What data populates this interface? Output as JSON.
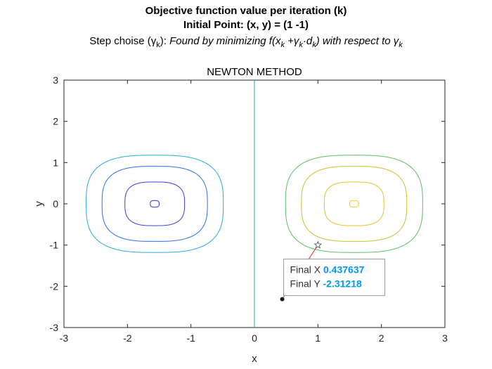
{
  "header": {
    "title_line1": "Objective function value per iteration (k)",
    "title_line2": "Initial Point: (x, y) = (1 -1)",
    "step_prefix": "Step choise (",
    "gamma": "γ",
    "sub_k": "k",
    "step_mid": "):  ",
    "found_text": "Found by minimizing f(x",
    "plus": " +",
    "dot_d": "·d",
    "wrt": ") with respect to "
  },
  "chart_data": {
    "type": "contour",
    "title": "NEWTON METHOD",
    "xlabel": "x",
    "ylabel": "y",
    "xlim": [
      -3,
      3
    ],
    "ylim": [
      -3,
      3
    ],
    "xticks": [
      -3,
      -2,
      -1,
      0,
      1,
      2,
      3
    ],
    "yticks": [
      -3,
      -2,
      -1,
      0,
      1,
      2,
      3
    ],
    "vertical_line": {
      "x": 0,
      "color": "#20a0c0"
    },
    "contours": [
      {
        "cx": -1.57,
        "cy": 0,
        "rx": 0.07,
        "ry": 0.08,
        "color": "#3a2fd6"
      },
      {
        "cx": -1.57,
        "cy": 0,
        "rx": 0.47,
        "ry": 0.53,
        "color": "#3a3ee0"
      },
      {
        "cx": -1.57,
        "cy": 0,
        "rx": 0.83,
        "ry": 0.91,
        "color": "#2a70e8"
      },
      {
        "cx": -1.57,
        "cy": 0,
        "rx": 1.08,
        "ry": 1.18,
        "color": "#2aa8e0"
      },
      {
        "cx": 1.57,
        "cy": 0,
        "rx": 0.07,
        "ry": 0.08,
        "color": "#f0d020"
      },
      {
        "cx": 1.57,
        "cy": 0,
        "rx": 0.47,
        "ry": 0.53,
        "color": "#e8c028"
      },
      {
        "cx": 1.57,
        "cy": 0,
        "rx": 0.83,
        "ry": 0.91,
        "color": "#c8c030"
      },
      {
        "cx": 1.57,
        "cy": 0,
        "rx": 1.08,
        "ry": 1.18,
        "color": "#58c060"
      }
    ],
    "path": {
      "points": [
        {
          "x": 1.0,
          "y": -1.0
        },
        {
          "x": 0.437637,
          "y": -2.31218
        }
      ],
      "color": "#e03030"
    },
    "start_marker": {
      "x": 1.0,
      "y": -1.0
    },
    "final_point": {
      "x": 0.437637,
      "y": -2.31218
    },
    "datatip": {
      "x_label": "Final X",
      "x_value": "0.437637",
      "y_label": "Final Y",
      "y_value": "-2.31218"
    },
    "grid": false
  }
}
